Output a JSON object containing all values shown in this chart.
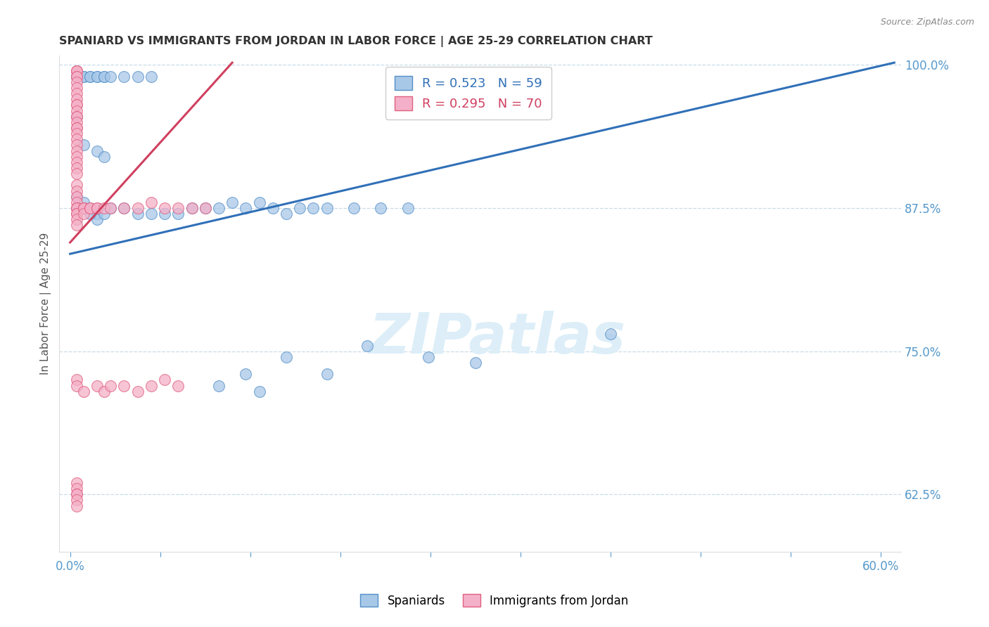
{
  "title": "SPANIARD VS IMMIGRANTS FROM JORDAN IN LABOR FORCE | AGE 25-29 CORRELATION CHART",
  "source": "Source: ZipAtlas.com",
  "ylabel": "In Labor Force | Age 25-29",
  "blue_R": 0.523,
  "blue_N": 59,
  "pink_R": 0.295,
  "pink_N": 70,
  "y_min": 0.575,
  "y_max": 1.008,
  "x_min": -0.008,
  "x_max": 0.615,
  "blue_color": "#a8c8e8",
  "pink_color": "#f4b0c8",
  "blue_edge_color": "#5590c8",
  "pink_edge_color": "#e06080",
  "blue_line_color": "#3070b8",
  "pink_line_color": "#d04060",
  "axis_tick_color": "#5599cc",
  "grid_color": "#c8dce8",
  "title_color": "#333333",
  "watermark_color": "#ddeef8",
  "legend_blue_color": "#3070b8",
  "legend_pink_color": "#d04060",
  "blue_line_x0": 0.0,
  "blue_line_y0": 0.835,
  "blue_line_x1": 0.61,
  "blue_line_y1": 1.002,
  "pink_line_x0": 0.0,
  "pink_line_y0": 0.845,
  "pink_line_x1": 0.12,
  "pink_line_y1": 1.002,
  "blue_points": [
    [
      0.005,
      0.99
    ],
    [
      0.005,
      0.99
    ],
    [
      0.005,
      0.99
    ],
    [
      0.005,
      0.99
    ],
    [
      0.01,
      0.99
    ],
    [
      0.01,
      0.99
    ],
    [
      0.015,
      0.99
    ],
    [
      0.015,
      0.99
    ],
    [
      0.02,
      0.99
    ],
    [
      0.02,
      0.99
    ],
    [
      0.025,
      0.99
    ],
    [
      0.025,
      0.99
    ],
    [
      0.03,
      0.99
    ],
    [
      0.04,
      0.99
    ],
    [
      0.05,
      0.99
    ],
    [
      0.06,
      0.99
    ],
    [
      0.005,
      0.955
    ],
    [
      0.01,
      0.93
    ],
    [
      0.02,
      0.925
    ],
    [
      0.025,
      0.92
    ],
    [
      0.005,
      0.885
    ],
    [
      0.01,
      0.88
    ],
    [
      0.01,
      0.875
    ],
    [
      0.015,
      0.875
    ],
    [
      0.02,
      0.87
    ],
    [
      0.02,
      0.865
    ],
    [
      0.025,
      0.87
    ],
    [
      0.03,
      0.875
    ],
    [
      0.04,
      0.875
    ],
    [
      0.05,
      0.87
    ],
    [
      0.06,
      0.87
    ],
    [
      0.07,
      0.87
    ],
    [
      0.08,
      0.87
    ],
    [
      0.005,
      0.875
    ],
    [
      0.01,
      0.875
    ],
    [
      0.015,
      0.87
    ],
    [
      0.09,
      0.875
    ],
    [
      0.1,
      0.875
    ],
    [
      0.11,
      0.875
    ],
    [
      0.12,
      0.88
    ],
    [
      0.13,
      0.875
    ],
    [
      0.14,
      0.88
    ],
    [
      0.15,
      0.875
    ],
    [
      0.16,
      0.87
    ],
    [
      0.17,
      0.875
    ],
    [
      0.18,
      0.875
    ],
    [
      0.19,
      0.875
    ],
    [
      0.21,
      0.875
    ],
    [
      0.23,
      0.875
    ],
    [
      0.25,
      0.875
    ],
    [
      0.11,
      0.72
    ],
    [
      0.13,
      0.73
    ],
    [
      0.14,
      0.715
    ],
    [
      0.16,
      0.745
    ],
    [
      0.19,
      0.73
    ],
    [
      0.22,
      0.755
    ],
    [
      0.265,
      0.745
    ],
    [
      0.3,
      0.74
    ],
    [
      0.4,
      0.765
    ]
  ],
  "pink_points": [
    [
      0.005,
      0.995
    ],
    [
      0.005,
      0.995
    ],
    [
      0.005,
      0.995
    ],
    [
      0.005,
      0.99
    ],
    [
      0.005,
      0.99
    ],
    [
      0.005,
      0.985
    ],
    [
      0.005,
      0.98
    ],
    [
      0.005,
      0.975
    ],
    [
      0.005,
      0.97
    ],
    [
      0.005,
      0.965
    ],
    [
      0.005,
      0.965
    ],
    [
      0.005,
      0.96
    ],
    [
      0.005,
      0.955
    ],
    [
      0.005,
      0.955
    ],
    [
      0.005,
      0.95
    ],
    [
      0.005,
      0.945
    ],
    [
      0.005,
      0.945
    ],
    [
      0.005,
      0.94
    ],
    [
      0.005,
      0.935
    ],
    [
      0.005,
      0.93
    ],
    [
      0.005,
      0.925
    ],
    [
      0.005,
      0.92
    ],
    [
      0.005,
      0.915
    ],
    [
      0.005,
      0.91
    ],
    [
      0.005,
      0.905
    ],
    [
      0.005,
      0.895
    ],
    [
      0.005,
      0.89
    ],
    [
      0.005,
      0.885
    ],
    [
      0.005,
      0.88
    ],
    [
      0.005,
      0.875
    ],
    [
      0.005,
      0.875
    ],
    [
      0.005,
      0.875
    ],
    [
      0.005,
      0.87
    ],
    [
      0.005,
      0.87
    ],
    [
      0.005,
      0.865
    ],
    [
      0.005,
      0.86
    ],
    [
      0.01,
      0.875
    ],
    [
      0.01,
      0.875
    ],
    [
      0.01,
      0.875
    ],
    [
      0.01,
      0.87
    ],
    [
      0.015,
      0.875
    ],
    [
      0.015,
      0.875
    ],
    [
      0.02,
      0.875
    ],
    [
      0.02,
      0.875
    ],
    [
      0.025,
      0.875
    ],
    [
      0.03,
      0.875
    ],
    [
      0.04,
      0.875
    ],
    [
      0.05,
      0.875
    ],
    [
      0.06,
      0.88
    ],
    [
      0.07,
      0.875
    ],
    [
      0.08,
      0.875
    ],
    [
      0.09,
      0.875
    ],
    [
      0.1,
      0.875
    ],
    [
      0.005,
      0.635
    ],
    [
      0.005,
      0.63
    ],
    [
      0.005,
      0.625
    ],
    [
      0.005,
      0.625
    ],
    [
      0.005,
      0.62
    ],
    [
      0.005,
      0.615
    ],
    [
      0.005,
      0.725
    ],
    [
      0.005,
      0.72
    ],
    [
      0.01,
      0.715
    ],
    [
      0.02,
      0.72
    ],
    [
      0.025,
      0.715
    ],
    [
      0.03,
      0.72
    ],
    [
      0.04,
      0.72
    ],
    [
      0.05,
      0.715
    ],
    [
      0.06,
      0.72
    ],
    [
      0.07,
      0.725
    ],
    [
      0.08,
      0.72
    ]
  ]
}
